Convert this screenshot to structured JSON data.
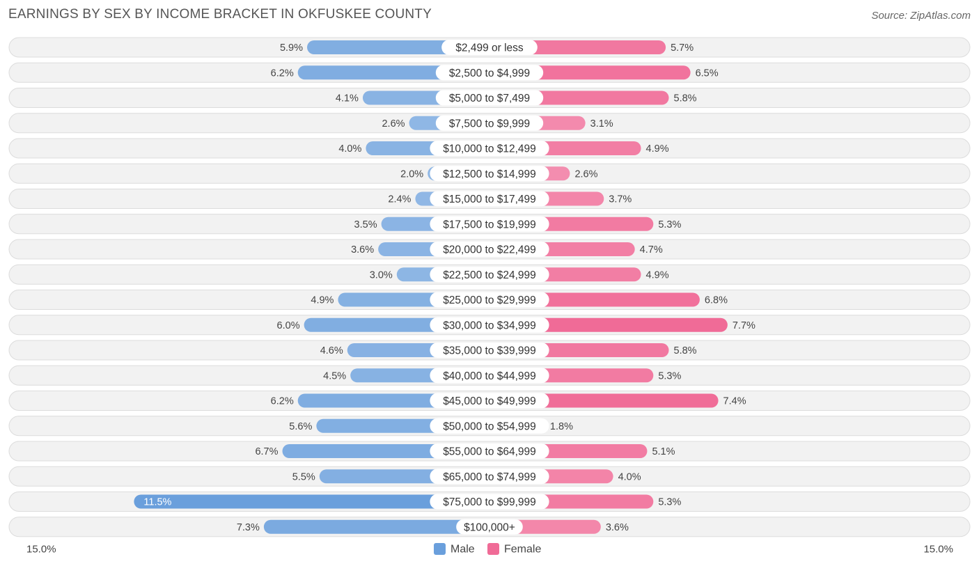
{
  "title": "EARNINGS BY SEX BY INCOME BRACKET IN OKFUSKEE COUNTY",
  "source": "Source: ZipAtlas.com",
  "colors": {
    "male": "#6a9fdc",
    "female": "#f06b97"
  },
  "chart_data": {
    "type": "bar",
    "orientation": "horizontal-diverging",
    "title": "EARNINGS BY SEX BY INCOME BRACKET IN OKFUSKEE COUNTY",
    "categories": [
      "$2,499 or less",
      "$2,500 to $4,999",
      "$5,000 to $7,499",
      "$7,500 to $9,999",
      "$10,000 to $12,499",
      "$12,500 to $14,999",
      "$15,000 to $17,499",
      "$17,500 to $19,999",
      "$20,000 to $22,499",
      "$22,500 to $24,999",
      "$25,000 to $29,999",
      "$30,000 to $34,999",
      "$35,000 to $39,999",
      "$40,000 to $44,999",
      "$45,000 to $49,999",
      "$50,000 to $54,999",
      "$55,000 to $64,999",
      "$65,000 to $74,999",
      "$75,000 to $99,999",
      "$100,000+"
    ],
    "series": [
      {
        "name": "Male",
        "values": [
          5.9,
          6.2,
          4.1,
          2.6,
          4.0,
          2.0,
          2.4,
          3.5,
          3.6,
          3.0,
          4.9,
          6.0,
          4.6,
          4.5,
          6.2,
          5.6,
          6.7,
          5.5,
          11.5,
          7.3
        ],
        "labels": [
          "5.9%",
          "6.2%",
          "4.1%",
          "2.6%",
          "4.0%",
          "2.0%",
          "2.4%",
          "3.5%",
          "3.6%",
          "3.0%",
          "4.9%",
          "6.0%",
          "4.6%",
          "4.5%",
          "6.2%",
          "5.6%",
          "6.7%",
          "5.5%",
          "11.5%",
          "7.3%"
        ]
      },
      {
        "name": "Female",
        "values": [
          5.7,
          6.5,
          5.8,
          3.1,
          4.9,
          2.6,
          3.7,
          5.3,
          4.7,
          4.9,
          6.8,
          7.7,
          5.8,
          5.3,
          7.4,
          1.8,
          5.1,
          4.0,
          5.3,
          3.6
        ],
        "labels": [
          "5.7%",
          "6.5%",
          "5.8%",
          "3.1%",
          "4.9%",
          "2.6%",
          "3.7%",
          "5.3%",
          "4.7%",
          "4.9%",
          "6.8%",
          "7.7%",
          "5.8%",
          "5.3%",
          "7.4%",
          "1.8%",
          "5.1%",
          "4.0%",
          "5.3%",
          "3.6%"
        ]
      }
    ],
    "axis": {
      "max": 15.0,
      "left_label": "15.0%",
      "right_label": "15.0%"
    },
    "legend": {
      "position": "bottom-center",
      "items": [
        "Male",
        "Female"
      ]
    }
  }
}
